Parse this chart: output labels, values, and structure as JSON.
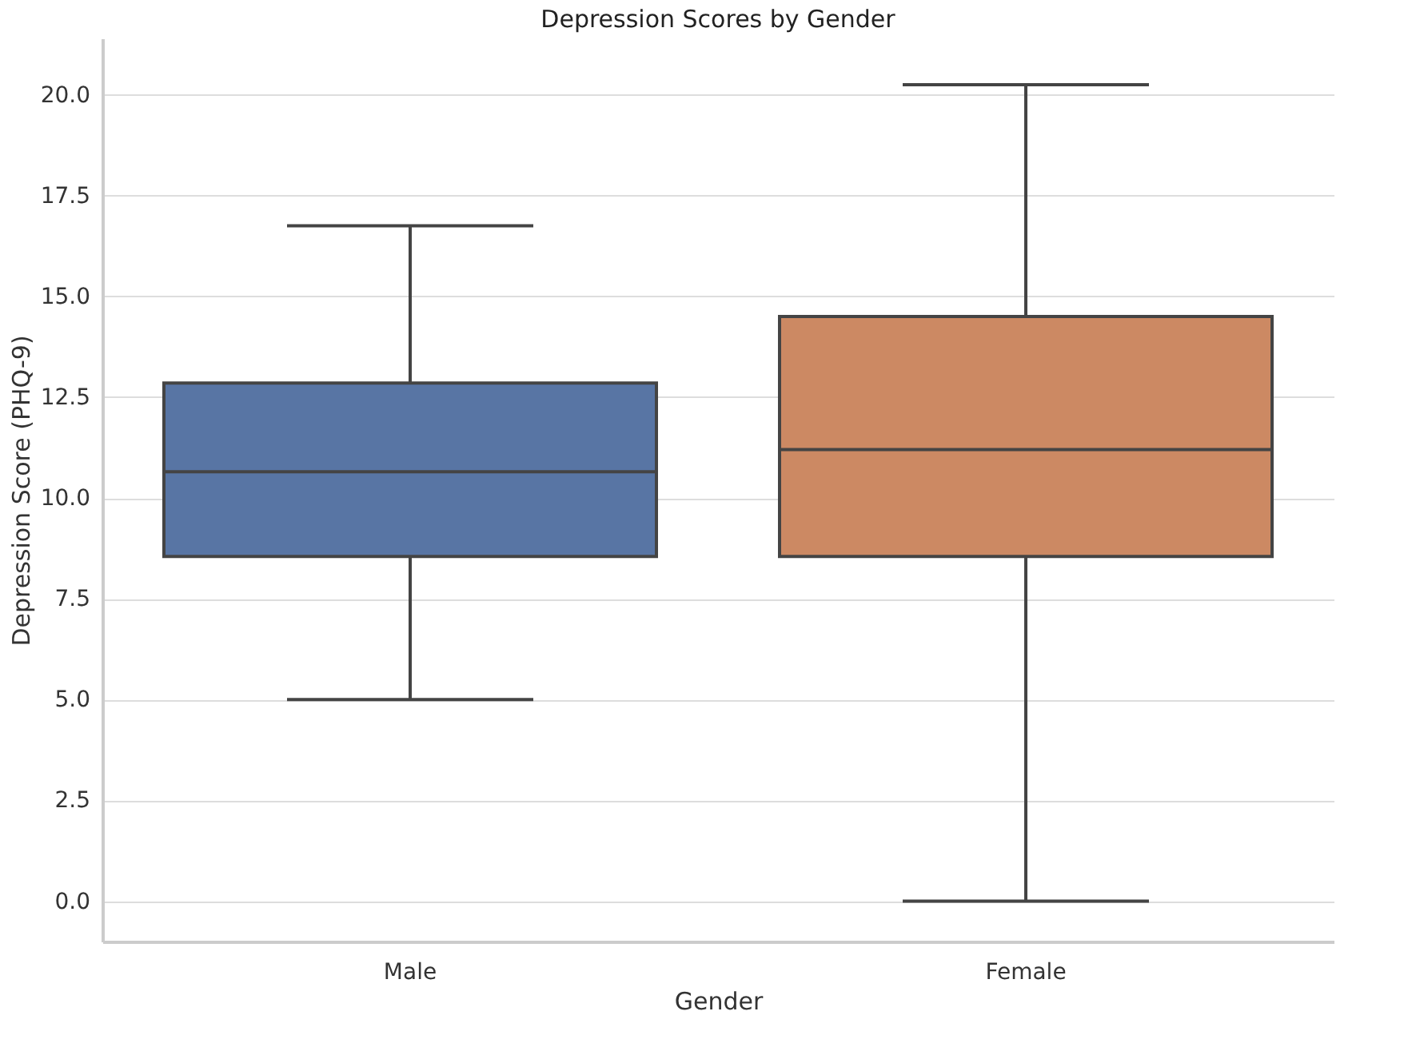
{
  "chart_data": {
    "type": "box",
    "title": "Depression Scores by Gender",
    "xlabel": "Gender",
    "ylabel": "Depression Score (PHQ-9)",
    "categories": [
      "Male",
      "Female"
    ],
    "boxes": [
      {
        "low": 5.0,
        "q1": 8.55,
        "q3": 12.85,
        "median": 10.65,
        "high": 16.75
      },
      {
        "low": 0.0,
        "q1": 8.55,
        "q3": 14.5,
        "median": 11.2,
        "high": 20.25
      }
    ],
    "colors": [
      "#5875a4",
      "#cc8963"
    ],
    "ylim": [
      -1.0,
      21.4
    ],
    "yticks": [
      {
        "value": 0,
        "label": "0.0"
      },
      2.5,
      {
        "value": 5,
        "label": "5.0"
      },
      7.5,
      {
        "value": 10,
        "label": "10.0"
      },
      12.5,
      {
        "value": 15,
        "label": "15.0"
      },
      17.5,
      {
        "value": 20,
        "label": "20.0"
      }
    ],
    "grid": "y"
  }
}
